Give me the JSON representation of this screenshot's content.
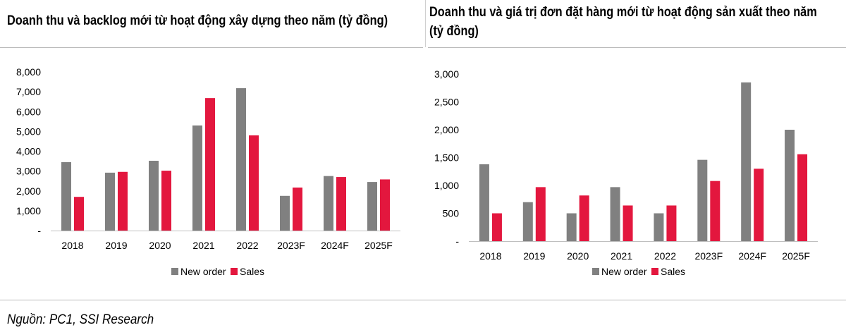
{
  "source": "Nguồn: PC1, SSI Research",
  "colors": {
    "new_order": "#808080",
    "sales": "#e3173e",
    "axis": "#bfbfbf"
  },
  "chart_data": [
    {
      "type": "bar",
      "title": "Doanh thu và backlog mới từ hoạt động xây dựng theo năm (tỷ đồng)",
      "categories": [
        "2018",
        "2019",
        "2020",
        "2021",
        "2022",
        "2023F",
        "2024F",
        "2025F"
      ],
      "series": [
        {
          "name": "New order",
          "values": [
            3450,
            2920,
            3520,
            5300,
            7180,
            1750,
            2750,
            2450
          ]
        },
        {
          "name": "Sales",
          "values": [
            1700,
            2960,
            3020,
            6680,
            4800,
            2170,
            2700,
            2580
          ]
        }
      ],
      "ylim": [
        0,
        8000
      ],
      "yticks": [
        "-",
        "1,000",
        "2,000",
        "3,000",
        "4,000",
        "5,000",
        "6,000",
        "7,000",
        "8,000"
      ],
      "legend": "bottom",
      "grid": false
    },
    {
      "type": "bar",
      "title_line1": "Doanh thu và giá trị đơn đặt hàng mới từ hoạt động sản xuất theo năm",
      "title_line2": "(tỷ đồng)",
      "categories": [
        "2018",
        "2019",
        "2020",
        "2021",
        "2022",
        "2023F",
        "2024F",
        "2025F"
      ],
      "series": [
        {
          "name": "New order",
          "values": [
            1380,
            700,
            500,
            970,
            500,
            1460,
            2850,
            2000
          ]
        },
        {
          "name": "Sales",
          "values": [
            500,
            970,
            820,
            640,
            640,
            1080,
            1300,
            1560
          ]
        }
      ],
      "ylim": [
        0,
        3000
      ],
      "yticks": [
        "-",
        "500",
        "1,000",
        "1,500",
        "2,000",
        "2,500",
        "3,000"
      ],
      "legend": "bottom",
      "grid": false
    }
  ]
}
